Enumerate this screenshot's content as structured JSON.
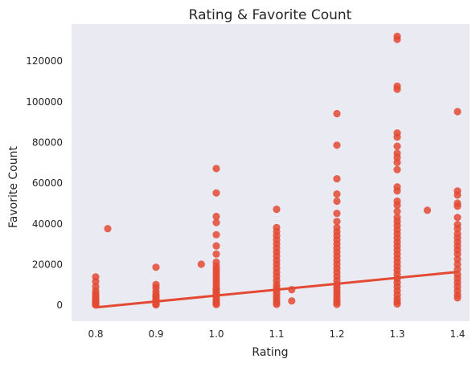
{
  "chart_data": {
    "type": "scatter",
    "title": "Rating & Favorite Count",
    "xlabel": "Rating",
    "ylabel": "Favorite Count",
    "xlim": [
      0.76,
      1.42
    ],
    "ylim": [
      -8000,
      138000
    ],
    "xticks": [
      0.8,
      0.9,
      1.0,
      1.1,
      1.2,
      1.3,
      1.4
    ],
    "xtick_labels": [
      "0.8",
      "0.9",
      "1.0",
      "1.1",
      "1.2",
      "1.3",
      "1.4"
    ],
    "yticks": [
      0,
      20000,
      40000,
      60000,
      80000,
      100000,
      120000
    ],
    "ytick_labels": [
      "0",
      "20000",
      "40000",
      "60000",
      "80000",
      "100000",
      "120000"
    ],
    "grid": false,
    "legend": "none",
    "colors": {
      "background": "#eaeaf2",
      "points": "#e34a33",
      "line": "#e34a33"
    },
    "regression_line": {
      "x": [
        0.8,
        1.4
      ],
      "y": [
        -1200,
        16200
      ]
    },
    "points": [
      {
        "x": 0.8,
        "y": 13800
      },
      {
        "x": 0.8,
        "y": 11500
      },
      {
        "x": 0.8,
        "y": 9000
      },
      {
        "x": 0.8,
        "y": 7000
      },
      {
        "x": 0.8,
        "y": 5500
      },
      {
        "x": 0.8,
        "y": 4500
      },
      {
        "x": 0.8,
        "y": 3500
      },
      {
        "x": 0.8,
        "y": 2800
      },
      {
        "x": 0.8,
        "y": 2000
      },
      {
        "x": 0.8,
        "y": 1400
      },
      {
        "x": 0.8,
        "y": 900
      },
      {
        "x": 0.8,
        "y": 500
      },
      {
        "x": 0.8,
        "y": 200
      },
      {
        "x": 0.8,
        "y": 0
      },
      {
        "x": 0.82,
        "y": 37500
      },
      {
        "x": 0.9,
        "y": 18500
      },
      {
        "x": 0.9,
        "y": 10000
      },
      {
        "x": 0.9,
        "y": 8500
      },
      {
        "x": 0.9,
        "y": 6500
      },
      {
        "x": 0.9,
        "y": 5000
      },
      {
        "x": 0.9,
        "y": 4000
      },
      {
        "x": 0.9,
        "y": 3000
      },
      {
        "x": 0.9,
        "y": 2200
      },
      {
        "x": 0.9,
        "y": 1500
      },
      {
        "x": 0.9,
        "y": 900
      },
      {
        "x": 0.9,
        "y": 400
      },
      {
        "x": 0.9,
        "y": 100
      },
      {
        "x": 0.975,
        "y": 20000
      },
      {
        "x": 1.0,
        "y": 67000
      },
      {
        "x": 1.0,
        "y": 55000
      },
      {
        "x": 1.0,
        "y": 43500
      },
      {
        "x": 1.0,
        "y": 40500
      },
      {
        "x": 1.0,
        "y": 34500
      },
      {
        "x": 1.0,
        "y": 29000
      },
      {
        "x": 1.0,
        "y": 25000
      },
      {
        "x": 1.0,
        "y": 21000
      },
      {
        "x": 1.0,
        "y": 19000
      },
      {
        "x": 1.0,
        "y": 17500
      },
      {
        "x": 1.0,
        "y": 16000
      },
      {
        "x": 1.0,
        "y": 14500
      },
      {
        "x": 1.0,
        "y": 13000
      },
      {
        "x": 1.0,
        "y": 11500
      },
      {
        "x": 1.0,
        "y": 10000
      },
      {
        "x": 1.0,
        "y": 8500
      },
      {
        "x": 1.0,
        "y": 7500
      },
      {
        "x": 1.0,
        "y": 6500
      },
      {
        "x": 1.0,
        "y": 5500
      },
      {
        "x": 1.0,
        "y": 4500
      },
      {
        "x": 1.0,
        "y": 3500
      },
      {
        "x": 1.0,
        "y": 2500
      },
      {
        "x": 1.0,
        "y": 1500
      },
      {
        "x": 1.0,
        "y": 800
      },
      {
        "x": 1.0,
        "y": 200
      },
      {
        "x": 1.1,
        "y": 47000
      },
      {
        "x": 1.1,
        "y": 38000
      },
      {
        "x": 1.1,
        "y": 36000
      },
      {
        "x": 1.1,
        "y": 34000
      },
      {
        "x": 1.1,
        "y": 32000
      },
      {
        "x": 1.1,
        "y": 30000
      },
      {
        "x": 1.1,
        "y": 28000
      },
      {
        "x": 1.1,
        "y": 26000
      },
      {
        "x": 1.1,
        "y": 24000
      },
      {
        "x": 1.1,
        "y": 22000
      },
      {
        "x": 1.1,
        "y": 20000
      },
      {
        "x": 1.1,
        "y": 18000
      },
      {
        "x": 1.1,
        "y": 16000
      },
      {
        "x": 1.1,
        "y": 14000
      },
      {
        "x": 1.1,
        "y": 12000
      },
      {
        "x": 1.1,
        "y": 10000
      },
      {
        "x": 1.1,
        "y": 8500
      },
      {
        "x": 1.1,
        "y": 7000
      },
      {
        "x": 1.1,
        "y": 5500
      },
      {
        "x": 1.1,
        "y": 4000
      },
      {
        "x": 1.1,
        "y": 2500
      },
      {
        "x": 1.1,
        "y": 1200
      },
      {
        "x": 1.1,
        "y": 300
      },
      {
        "x": 1.125,
        "y": 7500
      },
      {
        "x": 1.125,
        "y": 2000
      },
      {
        "x": 1.2,
        "y": 94000
      },
      {
        "x": 1.2,
        "y": 78500
      },
      {
        "x": 1.2,
        "y": 62000
      },
      {
        "x": 1.2,
        "y": 54500
      },
      {
        "x": 1.2,
        "y": 51000
      },
      {
        "x": 1.2,
        "y": 45000
      },
      {
        "x": 1.2,
        "y": 41000
      },
      {
        "x": 1.2,
        "y": 38000
      },
      {
        "x": 1.2,
        "y": 36000
      },
      {
        "x": 1.2,
        "y": 34000
      },
      {
        "x": 1.2,
        "y": 32000
      },
      {
        "x": 1.2,
        "y": 30000
      },
      {
        "x": 1.2,
        "y": 28000
      },
      {
        "x": 1.2,
        "y": 26000
      },
      {
        "x": 1.2,
        "y": 24000
      },
      {
        "x": 1.2,
        "y": 22000
      },
      {
        "x": 1.2,
        "y": 20000
      },
      {
        "x": 1.2,
        "y": 18000
      },
      {
        "x": 1.2,
        "y": 16000
      },
      {
        "x": 1.2,
        "y": 14000
      },
      {
        "x": 1.2,
        "y": 12000
      },
      {
        "x": 1.2,
        "y": 10000
      },
      {
        "x": 1.2,
        "y": 8500
      },
      {
        "x": 1.2,
        "y": 7000
      },
      {
        "x": 1.2,
        "y": 5500
      },
      {
        "x": 1.2,
        "y": 4000
      },
      {
        "x": 1.2,
        "y": 2500
      },
      {
        "x": 1.2,
        "y": 1200
      },
      {
        "x": 1.2,
        "y": 300
      },
      {
        "x": 1.3,
        "y": 132000
      },
      {
        "x": 1.3,
        "y": 130500
      },
      {
        "x": 1.3,
        "y": 107500
      },
      {
        "x": 1.3,
        "y": 106000
      },
      {
        "x": 1.3,
        "y": 84500
      },
      {
        "x": 1.3,
        "y": 82500
      },
      {
        "x": 1.3,
        "y": 78000
      },
      {
        "x": 1.3,
        "y": 74500
      },
      {
        "x": 1.3,
        "y": 72500
      },
      {
        "x": 1.3,
        "y": 70000
      },
      {
        "x": 1.3,
        "y": 66500
      },
      {
        "x": 1.3,
        "y": 58000
      },
      {
        "x": 1.3,
        "y": 56000
      },
      {
        "x": 1.3,
        "y": 51000
      },
      {
        "x": 1.3,
        "y": 49000
      },
      {
        "x": 1.3,
        "y": 46000
      },
      {
        "x": 1.3,
        "y": 43000
      },
      {
        "x": 1.3,
        "y": 41000
      },
      {
        "x": 1.3,
        "y": 39000
      },
      {
        "x": 1.3,
        "y": 37000
      },
      {
        "x": 1.3,
        "y": 35000
      },
      {
        "x": 1.3,
        "y": 33000
      },
      {
        "x": 1.3,
        "y": 31000
      },
      {
        "x": 1.3,
        "y": 29000
      },
      {
        "x": 1.3,
        "y": 27000
      },
      {
        "x": 1.3,
        "y": 25000
      },
      {
        "x": 1.3,
        "y": 23000
      },
      {
        "x": 1.3,
        "y": 21000
      },
      {
        "x": 1.3,
        "y": 19000
      },
      {
        "x": 1.3,
        "y": 17000
      },
      {
        "x": 1.3,
        "y": 15000
      },
      {
        "x": 1.3,
        "y": 13000
      },
      {
        "x": 1.3,
        "y": 11000
      },
      {
        "x": 1.3,
        "y": 9000
      },
      {
        "x": 1.3,
        "y": 7000
      },
      {
        "x": 1.3,
        "y": 5000
      },
      {
        "x": 1.3,
        "y": 3000
      },
      {
        "x": 1.3,
        "y": 1500
      },
      {
        "x": 1.3,
        "y": 500
      },
      {
        "x": 1.35,
        "y": 46500
      },
      {
        "x": 1.4,
        "y": 95000
      },
      {
        "x": 1.4,
        "y": 56000
      },
      {
        "x": 1.4,
        "y": 54000
      },
      {
        "x": 1.4,
        "y": 50000
      },
      {
        "x": 1.4,
        "y": 48500
      },
      {
        "x": 1.4,
        "y": 43000
      },
      {
        "x": 1.4,
        "y": 39500
      },
      {
        "x": 1.4,
        "y": 37500
      },
      {
        "x": 1.4,
        "y": 35000
      },
      {
        "x": 1.4,
        "y": 33000
      },
      {
        "x": 1.4,
        "y": 31000
      },
      {
        "x": 1.4,
        "y": 29000
      },
      {
        "x": 1.4,
        "y": 27000
      },
      {
        "x": 1.4,
        "y": 25000
      },
      {
        "x": 1.4,
        "y": 22500
      },
      {
        "x": 1.4,
        "y": 20000
      },
      {
        "x": 1.4,
        "y": 17500
      },
      {
        "x": 1.4,
        "y": 15000
      },
      {
        "x": 1.4,
        "y": 13000
      },
      {
        "x": 1.4,
        "y": 11000
      },
      {
        "x": 1.4,
        "y": 9000
      },
      {
        "x": 1.4,
        "y": 7000
      },
      {
        "x": 1.4,
        "y": 5000
      },
      {
        "x": 1.4,
        "y": 3500
      }
    ]
  }
}
